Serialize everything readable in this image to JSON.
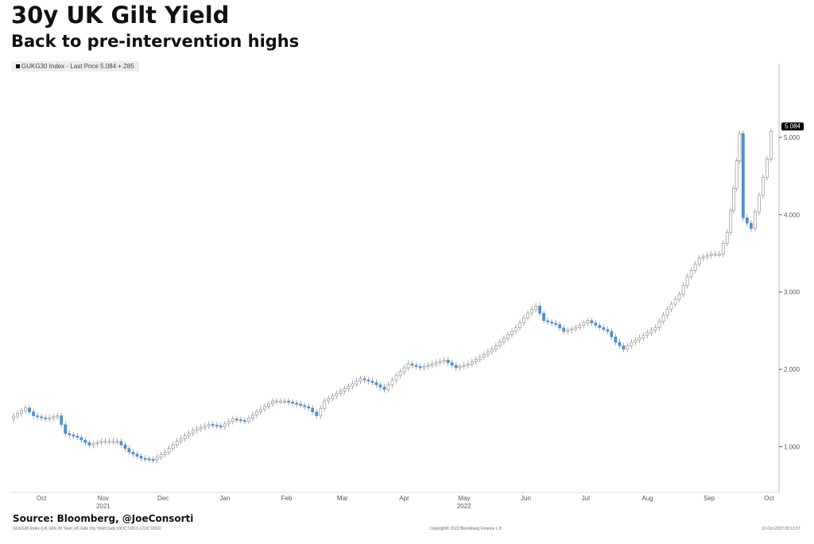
{
  "chart_data": {
    "type": "line",
    "style": "candlestick",
    "title": "30y UK Gilt Yield",
    "subtitle": "Back to pre-intervention highs",
    "legend": "GUKG30 Index - Last Price 5.084 +.285",
    "last_price_label": "5.084",
    "x_unit": "days since 2021-10-01",
    "xlim": [
      -16,
      370
    ],
    "ylim": [
      0.45,
      5.75
    ],
    "ylabel": "",
    "xlabel": "",
    "y_ticks": [
      {
        "value": 1,
        "label": "1.000"
      },
      {
        "value": 2,
        "label": "2.000"
      },
      {
        "value": 3,
        "label": "3.000"
      },
      {
        "value": 4,
        "label": "4.000"
      },
      {
        "value": 5,
        "label": "5.000"
      }
    ],
    "x_ticks": [
      {
        "value": 0,
        "label": "Oct"
      },
      {
        "value": 31,
        "label": "Nov",
        "year": "2021"
      },
      {
        "value": 61,
        "label": "Dec"
      },
      {
        "value": 92,
        "label": "Jan"
      },
      {
        "value": 123,
        "label": "Feb"
      },
      {
        "value": 151,
        "label": "Mar"
      },
      {
        "value": 182,
        "label": "Apr"
      },
      {
        "value": 212,
        "label": "May",
        "year": "2022"
      },
      {
        "value": 243,
        "label": "Jun"
      },
      {
        "value": 273,
        "label": "Jul"
      },
      {
        "value": 304,
        "label": "Aug"
      },
      {
        "value": 335,
        "label": "Sep"
      },
      {
        "value": 365,
        "label": "Oct"
      }
    ],
    "x": [
      -15,
      -7,
      -3,
      3,
      9,
      13,
      19,
      25,
      31,
      39,
      45,
      51,
      57,
      63,
      69,
      77,
      85,
      91,
      97,
      103,
      109,
      117,
      123,
      129,
      135,
      139,
      143,
      149,
      155,
      161,
      167,
      173,
      179,
      185,
      191,
      197,
      203,
      209,
      215,
      221,
      227,
      233,
      239,
      245,
      249,
      253,
      259,
      263,
      269,
      275,
      281,
      285,
      289,
      293,
      297,
      303,
      309,
      315,
      321,
      325,
      331,
      337,
      341,
      345,
      348,
      351,
      353,
      357,
      361,
      365,
      367
    ],
    "values": [
      1.36,
      1.5,
      1.4,
      1.36,
      1.4,
      1.17,
      1.12,
      1.02,
      1.07,
      1.07,
      0.93,
      0.85,
      0.83,
      0.93,
      1.07,
      1.21,
      1.29,
      1.26,
      1.36,
      1.33,
      1.45,
      1.59,
      1.59,
      1.55,
      1.5,
      1.4,
      1.59,
      1.69,
      1.78,
      1.88,
      1.83,
      1.74,
      1.92,
      2.07,
      2.02,
      2.07,
      2.12,
      2.02,
      2.07,
      2.16,
      2.26,
      2.4,
      2.54,
      2.73,
      2.82,
      2.63,
      2.58,
      2.49,
      2.54,
      2.63,
      2.54,
      2.49,
      2.35,
      2.26,
      2.35,
      2.44,
      2.54,
      2.78,
      2.97,
      3.2,
      3.44,
      3.49,
      3.49,
      3.77,
      4.34,
      5.05,
      3.96,
      3.82,
      4.25,
      4.72,
      5.08
    ],
    "colors": {
      "down": "#4a90d9",
      "up": "#ffffff",
      "outline": "#888888",
      "label_bg": "#000000"
    }
  },
  "source": "Source: Bloomberg, @JoeConsorti",
  "footer": {
    "left": "GUKG30 Index (UK Gilts 30 Year) UK Gilts 30y Yield Daily 03OCT2019-12OCT2022",
    "center": "Copyright© 2022 Bloomberg Finance L.P.",
    "right": "12-Oct-2022 09:13:57"
  }
}
